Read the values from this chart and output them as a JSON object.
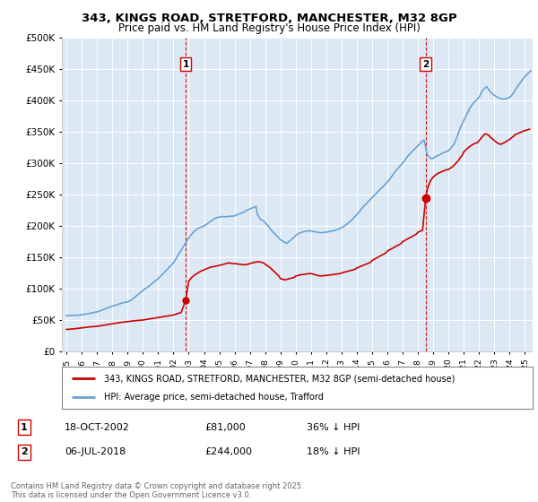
{
  "title": "343, KINGS ROAD, STRETFORD, MANCHESTER, M32 8GP",
  "subtitle": "Price paid vs. HM Land Registry's House Price Index (HPI)",
  "hpi_label": "HPI: Average price, semi-detached house, Trafford",
  "property_label": "343, KINGS ROAD, STRETFORD, MANCHESTER, M32 8GP (semi-detached house)",
  "footnote": "Contains HM Land Registry data © Crown copyright and database right 2025.\nThis data is licensed under the Open Government Licence v3.0.",
  "sale1_date": "18-OCT-2002",
  "sale1_price": 81000,
  "sale1_hpi_diff": "36% ↓ HPI",
  "sale1_x": 2002.8,
  "sale2_date": "06-JUL-2018",
  "sale2_price": 244000,
  "sale2_hpi_diff": "18% ↓ HPI",
  "sale2_x": 2018.5,
  "hpi_color": "#6aa3d4",
  "price_color": "#cc0000",
  "vline_color": "#cc0000",
  "plot_bg": "#dce9f5",
  "ylim": [
    0,
    500000
  ],
  "xlim_start": 1994.7,
  "xlim_end": 2025.5,
  "hpi_data": [
    [
      1995.0,
      57000
    ],
    [
      1995.1,
      57200
    ],
    [
      1995.2,
      57100
    ],
    [
      1995.3,
      57300
    ],
    [
      1995.4,
      57500
    ],
    [
      1995.5,
      57400
    ],
    [
      1995.6,
      57600
    ],
    [
      1995.7,
      57800
    ],
    [
      1995.8,
      57700
    ],
    [
      1995.9,
      58000
    ],
    [
      1996.0,
      58500
    ],
    [
      1996.1,
      58800
    ],
    [
      1996.2,
      59000
    ],
    [
      1996.3,
      59500
    ],
    [
      1996.4,
      60000
    ],
    [
      1996.5,
      60500
    ],
    [
      1996.6,
      61000
    ],
    [
      1996.7,
      61500
    ],
    [
      1996.8,
      62000
    ],
    [
      1996.9,
      62500
    ],
    [
      1997.0,
      63000
    ],
    [
      1997.1,
      63800
    ],
    [
      1997.2,
      64500
    ],
    [
      1997.3,
      65500
    ],
    [
      1997.4,
      66500
    ],
    [
      1997.5,
      67500
    ],
    [
      1997.6,
      68500
    ],
    [
      1997.7,
      69500
    ],
    [
      1997.8,
      70500
    ],
    [
      1997.9,
      71500
    ],
    [
      1998.0,
      72000
    ],
    [
      1998.1,
      72800
    ],
    [
      1998.2,
      73500
    ],
    [
      1998.3,
      74500
    ],
    [
      1998.4,
      75200
    ],
    [
      1998.5,
      76000
    ],
    [
      1998.6,
      76800
    ],
    [
      1998.7,
      77500
    ],
    [
      1998.8,
      78000
    ],
    [
      1998.9,
      78500
    ],
    [
      1999.0,
      79000
    ],
    [
      1999.1,
      80000
    ],
    [
      1999.2,
      81500
    ],
    [
      1999.3,
      83000
    ],
    [
      1999.4,
      85000
    ],
    [
      1999.5,
      87000
    ],
    [
      1999.6,
      89000
    ],
    [
      1999.7,
      91000
    ],
    [
      1999.8,
      93000
    ],
    [
      1999.9,
      95000
    ],
    [
      2000.0,
      97000
    ],
    [
      2000.1,
      99000
    ],
    [
      2000.2,
      100500
    ],
    [
      2000.3,
      102000
    ],
    [
      2000.4,
      104000
    ],
    [
      2000.5,
      106000
    ],
    [
      2000.6,
      108000
    ],
    [
      2000.7,
      110000
    ],
    [
      2000.8,
      112000
    ],
    [
      2000.9,
      114000
    ],
    [
      2001.0,
      116000
    ],
    [
      2001.1,
      118500
    ],
    [
      2001.2,
      121000
    ],
    [
      2001.3,
      123500
    ],
    [
      2001.4,
      126000
    ],
    [
      2001.5,
      128500
    ],
    [
      2001.6,
      131000
    ],
    [
      2001.7,
      133500
    ],
    [
      2001.8,
      136000
    ],
    [
      2001.9,
      138500
    ],
    [
      2002.0,
      141000
    ],
    [
      2002.1,
      145000
    ],
    [
      2002.2,
      149000
    ],
    [
      2002.3,
      153000
    ],
    [
      2002.4,
      157000
    ],
    [
      2002.5,
      161000
    ],
    [
      2002.6,
      165000
    ],
    [
      2002.7,
      169000
    ],
    [
      2002.8,
      173000
    ],
    [
      2002.9,
      177000
    ],
    [
      2003.0,
      181000
    ],
    [
      2003.1,
      184000
    ],
    [
      2003.2,
      187000
    ],
    [
      2003.3,
      190000
    ],
    [
      2003.4,
      192000
    ],
    [
      2003.5,
      194000
    ],
    [
      2003.6,
      196000
    ],
    [
      2003.7,
      197000
    ],
    [
      2003.8,
      198000
    ],
    [
      2003.9,
      199000
    ],
    [
      2004.0,
      200000
    ],
    [
      2004.2,
      203000
    ],
    [
      2004.4,
      207000
    ],
    [
      2004.6,
      210000
    ],
    [
      2004.8,
      213000
    ],
    [
      2005.0,
      214000
    ],
    [
      2005.2,
      215000
    ],
    [
      2005.4,
      214500
    ],
    [
      2005.6,
      215000
    ],
    [
      2005.8,
      215500
    ],
    [
      2006.0,
      216000
    ],
    [
      2006.2,
      218000
    ],
    [
      2006.4,
      220000
    ],
    [
      2006.6,
      222000
    ],
    [
      2006.8,
      225000
    ],
    [
      2007.0,
      227000
    ],
    [
      2007.2,
      229000
    ],
    [
      2007.4,
      231000
    ],
    [
      2007.5,
      218000
    ],
    [
      2007.7,
      210000
    ],
    [
      2007.9,
      208000
    ],
    [
      2008.0,
      205000
    ],
    [
      2008.2,
      200000
    ],
    [
      2008.4,
      193000
    ],
    [
      2008.6,
      188000
    ],
    [
      2008.8,
      183000
    ],
    [
      2009.0,
      178000
    ],
    [
      2009.2,
      175000
    ],
    [
      2009.4,
      172000
    ],
    [
      2009.5,
      174000
    ],
    [
      2009.7,
      178000
    ],
    [
      2009.9,
      182000
    ],
    [
      2010.0,
      185000
    ],
    [
      2010.2,
      188000
    ],
    [
      2010.4,
      190000
    ],
    [
      2010.6,
      191000
    ],
    [
      2010.8,
      192000
    ],
    [
      2011.0,
      192000
    ],
    [
      2011.2,
      191000
    ],
    [
      2011.4,
      190000
    ],
    [
      2011.6,
      189000
    ],
    [
      2011.8,
      189500
    ],
    [
      2012.0,
      190000
    ],
    [
      2012.2,
      191000
    ],
    [
      2012.4,
      192000
    ],
    [
      2012.6,
      193000
    ],
    [
      2012.8,
      195000
    ],
    [
      2013.0,
      197000
    ],
    [
      2013.2,
      200000
    ],
    [
      2013.4,
      204000
    ],
    [
      2013.6,
      208000
    ],
    [
      2013.8,
      213000
    ],
    [
      2014.0,
      218000
    ],
    [
      2014.2,
      224000
    ],
    [
      2014.4,
      230000
    ],
    [
      2014.6,
      235000
    ],
    [
      2014.8,
      240000
    ],
    [
      2015.0,
      245000
    ],
    [
      2015.2,
      250000
    ],
    [
      2015.4,
      255000
    ],
    [
      2015.6,
      260000
    ],
    [
      2015.8,
      265000
    ],
    [
      2016.0,
      270000
    ],
    [
      2016.2,
      276000
    ],
    [
      2016.4,
      283000
    ],
    [
      2016.6,
      289000
    ],
    [
      2016.8,
      295000
    ],
    [
      2017.0,
      300000
    ],
    [
      2017.2,
      307000
    ],
    [
      2017.4,
      313000
    ],
    [
      2017.6,
      318000
    ],
    [
      2017.8,
      323000
    ],
    [
      2018.0,
      328000
    ],
    [
      2018.2,
      333000
    ],
    [
      2018.4,
      337000
    ],
    [
      2018.6,
      314000
    ],
    [
      2018.7,
      310000
    ],
    [
      2018.8,
      308000
    ],
    [
      2018.9,
      307000
    ],
    [
      2019.0,
      308000
    ],
    [
      2019.1,
      310000
    ],
    [
      2019.2,
      311000
    ],
    [
      2019.4,
      313000
    ],
    [
      2019.6,
      316000
    ],
    [
      2019.8,
      318000
    ],
    [
      2020.0,
      320000
    ],
    [
      2020.2,
      325000
    ],
    [
      2020.4,
      332000
    ],
    [
      2020.6,
      345000
    ],
    [
      2020.8,
      358000
    ],
    [
      2021.0,
      368000
    ],
    [
      2021.2,
      378000
    ],
    [
      2021.4,
      388000
    ],
    [
      2021.6,
      395000
    ],
    [
      2021.8,
      400000
    ],
    [
      2022.0,
      405000
    ],
    [
      2022.2,
      415000
    ],
    [
      2022.4,
      420000
    ],
    [
      2022.5,
      422000
    ],
    [
      2022.6,
      418000
    ],
    [
      2022.8,
      412000
    ],
    [
      2023.0,
      408000
    ],
    [
      2023.2,
      405000
    ],
    [
      2023.4,
      403000
    ],
    [
      2023.6,
      402000
    ],
    [
      2023.8,
      403000
    ],
    [
      2024.0,
      405000
    ],
    [
      2024.2,
      410000
    ],
    [
      2024.4,
      418000
    ],
    [
      2024.6,
      425000
    ],
    [
      2024.8,
      432000
    ],
    [
      2025.0,
      438000
    ],
    [
      2025.2,
      443000
    ],
    [
      2025.4,
      448000
    ]
  ],
  "price_data": [
    [
      1995.0,
      35000
    ],
    [
      1995.5,
      36000
    ],
    [
      1996.0,
      37500
    ],
    [
      1996.5,
      39000
    ],
    [
      1997.0,
      40000
    ],
    [
      1997.5,
      42000
    ],
    [
      1998.0,
      44000
    ],
    [
      1998.5,
      46000
    ],
    [
      1999.0,
      47500
    ],
    [
      1999.5,
      49000
    ],
    [
      2000.0,
      50000
    ],
    [
      2000.5,
      52000
    ],
    [
      2001.0,
      54000
    ],
    [
      2001.5,
      56000
    ],
    [
      2002.0,
      58000
    ],
    [
      2002.5,
      62000
    ],
    [
      2002.8,
      81000
    ],
    [
      2003.0,
      112000
    ],
    [
      2003.2,
      118000
    ],
    [
      2003.4,
      122000
    ],
    [
      2003.6,
      125000
    ],
    [
      2003.8,
      128000
    ],
    [
      2004.0,
      130000
    ],
    [
      2004.2,
      132000
    ],
    [
      2004.4,
      134000
    ],
    [
      2004.6,
      135000
    ],
    [
      2004.8,
      136000
    ],
    [
      2005.0,
      137000
    ],
    [
      2005.3,
      139000
    ],
    [
      2005.6,
      141000
    ],
    [
      2005.9,
      140000
    ],
    [
      2006.0,
      140000
    ],
    [
      2006.3,
      139000
    ],
    [
      2006.6,
      138000
    ],
    [
      2006.9,
      139000
    ],
    [
      2007.0,
      140000
    ],
    [
      2007.3,
      142000
    ],
    [
      2007.6,
      143000
    ],
    [
      2007.9,
      141000
    ],
    [
      2008.0,
      139000
    ],
    [
      2008.3,
      134000
    ],
    [
      2008.6,
      127000
    ],
    [
      2008.9,
      120000
    ],
    [
      2009.0,
      116000
    ],
    [
      2009.3,
      114000
    ],
    [
      2009.6,
      116000
    ],
    [
      2009.9,
      118000
    ],
    [
      2010.0,
      120000
    ],
    [
      2010.3,
      122000
    ],
    [
      2010.6,
      123000
    ],
    [
      2010.9,
      124000
    ],
    [
      2011.0,
      124000
    ],
    [
      2011.3,
      122000
    ],
    [
      2011.6,
      120000
    ],
    [
      2011.9,
      121000
    ],
    [
      2012.0,
      121000
    ],
    [
      2012.3,
      122000
    ],
    [
      2012.6,
      123000
    ],
    [
      2012.9,
      124000
    ],
    [
      2013.0,
      125000
    ],
    [
      2013.3,
      127000
    ],
    [
      2013.6,
      129000
    ],
    [
      2013.9,
      131000
    ],
    [
      2014.0,
      133000
    ],
    [
      2014.3,
      136000
    ],
    [
      2014.6,
      139000
    ],
    [
      2014.9,
      142000
    ],
    [
      2015.0,
      145000
    ],
    [
      2015.3,
      149000
    ],
    [
      2015.6,
      153000
    ],
    [
      2015.9,
      157000
    ],
    [
      2016.0,
      160000
    ],
    [
      2016.3,
      164000
    ],
    [
      2016.6,
      168000
    ],
    [
      2016.9,
      172000
    ],
    [
      2017.0,
      175000
    ],
    [
      2017.3,
      179000
    ],
    [
      2017.6,
      183000
    ],
    [
      2017.9,
      187000
    ],
    [
      2018.0,
      190000
    ],
    [
      2018.3,
      193000
    ],
    [
      2018.5,
      244000
    ],
    [
      2018.6,
      257000
    ],
    [
      2018.7,
      265000
    ],
    [
      2018.8,
      271000
    ],
    [
      2018.9,
      275000
    ],
    [
      2019.0,
      278000
    ],
    [
      2019.2,
      282000
    ],
    [
      2019.4,
      285000
    ],
    [
      2019.6,
      287000
    ],
    [
      2019.8,
      289000
    ],
    [
      2020.0,
      290000
    ],
    [
      2020.3,
      295000
    ],
    [
      2020.6,
      303000
    ],
    [
      2020.9,
      313000
    ],
    [
      2021.0,
      318000
    ],
    [
      2021.3,
      325000
    ],
    [
      2021.6,
      330000
    ],
    [
      2021.9,
      333000
    ],
    [
      2022.0,
      336000
    ],
    [
      2022.2,
      342000
    ],
    [
      2022.4,
      347000
    ],
    [
      2022.6,
      345000
    ],
    [
      2022.8,
      340000
    ],
    [
      2023.0,
      336000
    ],
    [
      2023.2,
      332000
    ],
    [
      2023.4,
      330000
    ],
    [
      2023.6,
      332000
    ],
    [
      2023.8,
      335000
    ],
    [
      2024.0,
      338000
    ],
    [
      2024.2,
      342000
    ],
    [
      2024.4,
      346000
    ],
    [
      2024.6,
      348000
    ],
    [
      2024.8,
      350000
    ],
    [
      2025.0,
      352000
    ],
    [
      2025.3,
      354000
    ]
  ]
}
